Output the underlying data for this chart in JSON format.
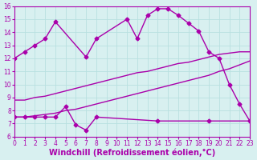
{
  "line1_x": [
    0,
    1,
    2,
    3,
    4,
    7,
    8,
    11,
    12,
    13,
    14,
    15,
    16,
    17,
    18,
    19,
    20,
    21,
    22,
    23
  ],
  "line1_y": [
    12.0,
    12.5,
    13.0,
    13.5,
    14.8,
    12.1,
    13.5,
    15.0,
    13.5,
    15.3,
    15.8,
    15.8,
    15.3,
    14.7,
    14.1,
    12.5,
    12.0,
    10.0,
    8.5,
    7.2
  ],
  "line2_x": [
    0,
    1,
    2,
    3,
    4,
    5,
    6,
    7,
    8,
    9,
    10,
    11,
    12,
    13,
    14,
    15,
    16,
    17,
    18,
    19,
    20,
    21,
    22,
    23
  ],
  "line2_y": [
    8.8,
    8.8,
    9.0,
    9.1,
    9.3,
    9.5,
    9.7,
    9.9,
    10.1,
    10.3,
    10.5,
    10.7,
    10.9,
    11.0,
    11.2,
    11.4,
    11.6,
    11.7,
    11.9,
    12.1,
    12.3,
    12.4,
    12.5,
    12.5
  ],
  "line3_x": [
    0,
    1,
    2,
    3,
    4,
    5,
    6,
    7,
    8,
    9,
    10,
    11,
    12,
    13,
    14,
    15,
    16,
    17,
    18,
    19,
    20,
    21,
    22,
    23
  ],
  "line3_y": [
    7.5,
    7.5,
    7.6,
    7.7,
    7.8,
    8.0,
    8.1,
    8.3,
    8.5,
    8.7,
    8.9,
    9.1,
    9.3,
    9.5,
    9.7,
    9.9,
    10.1,
    10.3,
    10.5,
    10.7,
    11.0,
    11.2,
    11.5,
    11.8
  ],
  "line4_x": [
    0,
    1,
    2,
    3,
    4,
    5,
    6,
    7,
    8,
    14,
    19,
    23
  ],
  "line4_y": [
    7.5,
    7.5,
    7.5,
    7.5,
    7.5,
    8.3,
    6.9,
    6.5,
    7.5,
    7.2,
    7.2,
    7.2
  ],
  "color": "#aa00aa",
  "bg_color": "#d8f0f0",
  "grid_color": "#b8e0e0",
  "xlabel": "Windchill (Refroidissement éolien,°C)",
  "xlim": [
    0,
    23
  ],
  "ylim": [
    6,
    16
  ],
  "xticks": [
    0,
    1,
    2,
    3,
    4,
    5,
    6,
    7,
    8,
    9,
    10,
    11,
    12,
    13,
    14,
    15,
    16,
    17,
    18,
    19,
    20,
    21,
    22,
    23
  ],
  "yticks": [
    6,
    7,
    8,
    9,
    10,
    11,
    12,
    13,
    14,
    15,
    16
  ],
  "marker": "D",
  "markersize": 2.5,
  "linewidth": 1.0,
  "xlabel_fontsize": 7,
  "tick_fontsize": 5.5
}
